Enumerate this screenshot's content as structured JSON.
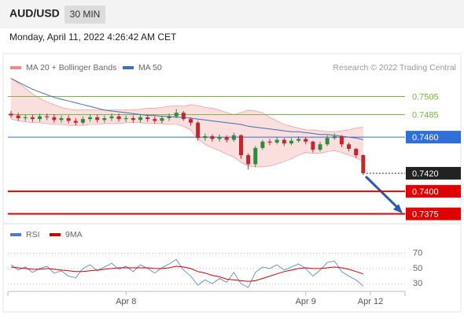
{
  "header": {
    "symbol": "AUD/USD",
    "interval": "30 MIN",
    "timestamp": "Monday, April 11, 2022 4:26:42 AM CET"
  },
  "chart_data": {
    "type": "candlestick",
    "credit": "Research © 2022 Trading Central",
    "categories": [
      null,
      null,
      null,
      null,
      null,
      null,
      null,
      null,
      null,
      null,
      null,
      null,
      null,
      null,
      null,
      null,
      "Apr 8",
      null,
      null,
      null,
      null,
      null,
      null,
      null,
      null,
      null,
      null,
      null,
      null,
      null,
      null,
      null,
      null,
      null,
      null,
      null,
      null,
      null,
      null,
      null,
      null,
      "Apr 9",
      null,
      null,
      null,
      null,
      null,
      null,
      null,
      null,
      "Apr 12"
    ],
    "ylim": [
      0.7365,
      0.7529
    ],
    "up_color": "#2e8b3a",
    "down_color": "#c0282d",
    "open": [
      0.7486,
      0.7484,
      0.7481,
      0.7482,
      0.748,
      0.7483,
      0.7482,
      0.7479,
      0.7481,
      0.7478,
      0.7476,
      0.748,
      0.7482,
      0.7479,
      0.7481,
      0.7483,
      0.748,
      0.7481,
      0.7479,
      0.7482,
      0.748,
      0.7478,
      0.7481,
      0.7483,
      0.7487,
      0.748,
      0.7476,
      0.7459,
      0.7461,
      0.7458,
      0.746,
      0.7457,
      0.7462,
      0.744,
      0.743,
      0.7448,
      0.7455,
      0.7454,
      0.7457,
      0.7453,
      0.7456,
      0.7458,
      0.7455,
      0.7446,
      0.7452,
      0.7459,
      0.7461,
      0.7452,
      0.7447,
      0.744,
      null
    ],
    "high": [
      0.7489,
      0.7487,
      0.7485,
      0.7485,
      0.7486,
      0.7486,
      0.7485,
      0.7484,
      0.7484,
      0.7481,
      0.7483,
      0.7485,
      0.7485,
      0.7484,
      0.7486,
      0.7486,
      0.7484,
      0.7484,
      0.7485,
      0.7485,
      0.7483,
      0.7484,
      0.7486,
      0.7491,
      0.7489,
      0.7482,
      0.7478,
      0.7464,
      0.7463,
      0.7463,
      0.7462,
      0.7465,
      0.7463,
      0.7442,
      0.745,
      0.7457,
      0.7458,
      0.746,
      0.7459,
      0.7459,
      0.7461,
      0.746,
      0.7456,
      0.7455,
      0.7462,
      0.7464,
      0.7462,
      0.7454,
      0.7448,
      0.7441,
      null
    ],
    "low": [
      0.7481,
      0.7478,
      0.7478,
      0.7477,
      0.7477,
      0.7479,
      0.7476,
      0.7476,
      0.7475,
      0.7473,
      0.7474,
      0.7477,
      0.7476,
      0.7476,
      0.7478,
      0.7477,
      0.7477,
      0.7476,
      0.7476,
      0.7477,
      0.7475,
      0.7475,
      0.7478,
      0.7481,
      0.7478,
      0.7473,
      0.7456,
      0.7456,
      0.7455,
      0.7455,
      0.7454,
      0.7455,
      0.7436,
      0.7424,
      0.7427,
      0.7446,
      0.7451,
      0.7452,
      0.745,
      0.7451,
      0.7454,
      0.7452,
      0.7443,
      0.7444,
      0.745,
      0.7457,
      0.7449,
      0.7444,
      0.7437,
      0.7418,
      null
    ],
    "close": [
      0.7484,
      0.7481,
      0.7482,
      0.748,
      0.7483,
      0.7482,
      0.7479,
      0.7481,
      0.7478,
      0.7476,
      0.748,
      0.7482,
      0.7479,
      0.7481,
      0.7483,
      0.748,
      0.7481,
      0.7479,
      0.7482,
      0.748,
      0.7478,
      0.7481,
      0.7483,
      0.7487,
      0.748,
      0.7476,
      0.7459,
      0.7461,
      0.7458,
      0.746,
      0.7457,
      0.7462,
      0.744,
      0.743,
      0.7448,
      0.7455,
      0.7454,
      0.7457,
      0.7453,
      0.7456,
      0.7458,
      0.7455,
      0.7446,
      0.7452,
      0.7459,
      0.7461,
      0.7452,
      0.7447,
      0.744,
      0.742,
      null
    ],
    "series": [
      {
        "name": "MA 20 + Bollinger Bands",
        "color": "#f08a8a",
        "upper": [
          0.7525,
          0.752,
          0.7514,
          0.7508,
          0.7503,
          0.7499,
          0.7496,
          0.7493,
          0.7491,
          0.749,
          0.749,
          0.749,
          0.749,
          0.749,
          0.749,
          0.749,
          0.749,
          0.749,
          0.7491,
          0.7492,
          0.7492,
          0.7493,
          0.7494,
          0.7495,
          0.7494,
          0.7496,
          0.7495,
          0.7493,
          0.7492,
          0.749,
          0.7487,
          0.7485,
          0.7487,
          0.749,
          0.7489,
          0.7487,
          0.7482,
          0.7478,
          0.7474,
          0.7472,
          0.747,
          0.7468,
          0.7468,
          0.7467,
          0.7466,
          0.7466,
          0.7467,
          0.7468,
          0.747,
          0.7471,
          null
        ],
        "lower": [
          0.748,
          0.7478,
          0.7477,
          0.7476,
          0.7476,
          0.7475,
          0.7474,
          0.7474,
          0.7473,
          0.7473,
          0.7473,
          0.7474,
          0.7474,
          0.7475,
          0.7475,
          0.7475,
          0.7476,
          0.7476,
          0.7476,
          0.7475,
          0.7475,
          0.7475,
          0.7474,
          0.7474,
          0.7472,
          0.7468,
          0.7458,
          0.7452,
          0.7448,
          0.7445,
          0.7441,
          0.7438,
          0.7432,
          0.7428,
          0.7427,
          0.7427,
          0.7428,
          0.743,
          0.7433,
          0.7436,
          0.744,
          0.7443,
          0.7442,
          0.7442,
          0.7444,
          0.7445,
          0.7443,
          0.744,
          0.7437,
          0.7433,
          null
        ]
      },
      {
        "name": "MA 50",
        "color": "#3f6fb5",
        "values": [
          0.7525,
          0.7521,
          0.7517,
          0.7513,
          0.751,
          0.7507,
          0.7504,
          0.7502,
          0.75,
          0.7498,
          0.7496,
          0.7494,
          0.7492,
          0.749,
          0.7489,
          0.7488,
          0.7487,
          0.7486,
          0.7485,
          0.7484,
          0.7484,
          0.7483,
          0.7483,
          0.7482,
          0.7482,
          0.7481,
          0.748,
          0.7479,
          0.7478,
          0.7477,
          0.7476,
          0.7475,
          0.7474,
          0.7472,
          0.7471,
          0.747,
          0.7469,
          0.7468,
          0.7467,
          0.7466,
          0.7466,
          0.7465,
          0.7464,
          0.7463,
          0.7463,
          0.7462,
          0.7461,
          0.746,
          0.7459,
          0.7457,
          null
        ]
      }
    ],
    "levels": [
      {
        "value": 0.7505,
        "label": "0.7505",
        "color": "#7cb342",
        "box": false,
        "line": "solid"
      },
      {
        "value": 0.7485,
        "label": "0.7485",
        "color": "#7cb342",
        "box": false,
        "line": "solid"
      },
      {
        "value": 0.746,
        "label": "0.7460",
        "color": "#2f6fd6",
        "box": true,
        "line": "solid"
      },
      {
        "value": 0.742,
        "label": "0.7420",
        "color": "#222222",
        "box": true,
        "line": "dotted"
      },
      {
        "value": 0.74,
        "label": "0.7400",
        "color": "#e00000",
        "box": true,
        "line": "solid"
      },
      {
        "value": 0.7375,
        "label": "0.7375",
        "color": "#e00000",
        "box": true,
        "line": "solid"
      }
    ],
    "rsi_panel": {
      "ylim": [
        24,
        80
      ],
      "yticks": [
        70,
        50,
        30
      ],
      "series": [
        {
          "name": "RSI",
          "color": "#4a7bd0",
          "values": [
            55,
            48,
            52,
            45,
            50,
            53,
            44,
            47,
            40,
            38,
            50,
            55,
            47,
            52,
            57,
            49,
            53,
            46,
            55,
            50,
            44,
            51,
            56,
            62,
            48,
            40,
            28,
            35,
            30,
            37,
            32,
            45,
            30,
            25,
            45,
            52,
            50,
            55,
            48,
            52,
            56,
            50,
            40,
            48,
            58,
            60,
            46,
            40,
            35,
            27,
            null
          ]
        },
        {
          "name": "9MA",
          "color": "#d50000",
          "values": [
            52,
            51,
            50,
            49,
            49,
            50,
            49,
            48,
            47,
            46,
            46,
            47,
            48,
            49,
            50,
            51,
            51,
            51,
            51,
            51,
            50,
            50,
            51,
            53,
            52,
            50,
            46,
            44,
            41,
            39,
            36,
            35,
            34,
            33,
            34,
            37,
            40,
            43,
            46,
            48,
            50,
            51,
            50,
            50,
            51,
            52,
            51,
            49,
            46,
            43,
            null
          ]
        }
      ]
    }
  }
}
